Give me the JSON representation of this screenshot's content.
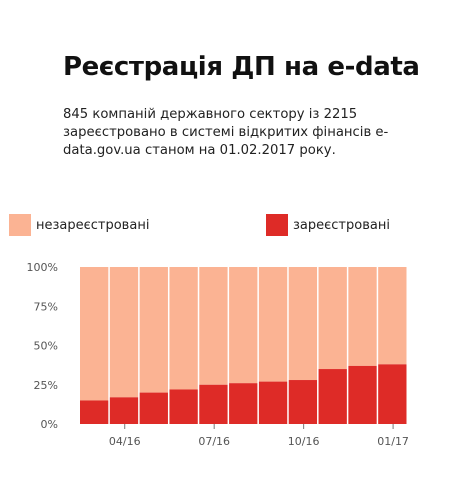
{
  "title": "Реєстрація ДП на e-data",
  "subtitle": "845 компаній державного сектору із 2215 зареєстровано в системі відкритих фінансів e-data.gov.ua станом на 01.02.2017 року.",
  "colors": {
    "unregistered": "#fbb393",
    "registered": "#de2b27"
  },
  "chart_data": {
    "type": "bar",
    "stacked": true,
    "ylim": [
      0,
      100
    ],
    "yticks": [
      0,
      25,
      50,
      75,
      100
    ],
    "ytick_labels": [
      "0%",
      "25%",
      "50%",
      "75%",
      "100%"
    ],
    "xtick_labels": [
      {
        "label": "04/16",
        "index": 1
      },
      {
        "label": "07/16",
        "index": 4
      },
      {
        "label": "10/16",
        "index": 7
      },
      {
        "label": "01/17",
        "index": 10
      }
    ],
    "bar_count": 11,
    "series": [
      {
        "name": "зареєстровані",
        "values": [
          15,
          17,
          20,
          22,
          25,
          26,
          27,
          28,
          35,
          37,
          38
        ]
      },
      {
        "name": "незареєстровані",
        "values": [
          85,
          83,
          80,
          78,
          75,
          74,
          73,
          72,
          65,
          63,
          62
        ]
      }
    ],
    "legend": [
      {
        "label": "незареєстровані",
        "color_key": "unregistered"
      },
      {
        "label": "зареєстровані",
        "color_key": "registered"
      }
    ]
  }
}
